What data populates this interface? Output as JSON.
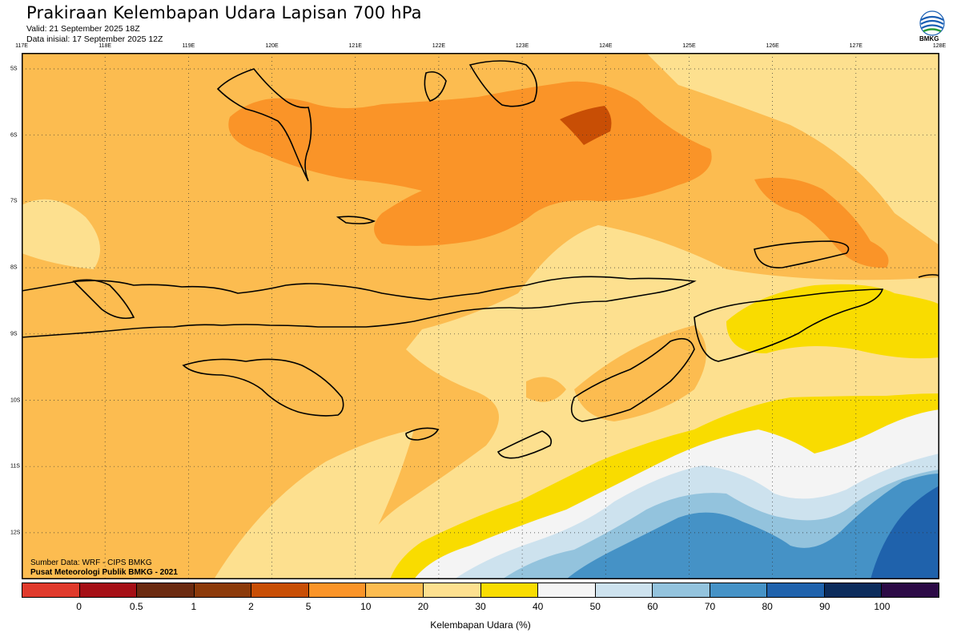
{
  "header": {
    "title": "Prakiraan Kelembapan Udara Lapisan 700 hPa",
    "valid": "Valid: 21 September 2025 18Z",
    "data_initial": "Data inisial: 17 September 2025 12Z",
    "logo_text": "BMKG"
  },
  "map": {
    "lon_labels": [
      "117E",
      "118E",
      "119E",
      "120E",
      "121E",
      "122E",
      "123E",
      "124E",
      "125E",
      "126E",
      "127E",
      "128E"
    ],
    "lat_labels": [
      "5S",
      "6S",
      "7S",
      "8S",
      "9S",
      "10S",
      "11S",
      "12S"
    ],
    "credit_source": "Sumber Data: WRF - CIPS BMKG",
    "credit_org": "Pusat Meteorologi Publik BMKG - 2021",
    "colors": {
      "c10_20": "#fcbc50",
      "c5_10": "#fa9428",
      "c2_5": "#c84e05",
      "c20_30": "#fde08f",
      "c30_40": "#f9dc00",
      "c40_50": "#f4f4f4",
      "c50_60": "#cde2ee",
      "c60_70": "#93c3dd",
      "c70_80": "#4592c6",
      "c80_90": "#1f62ac"
    }
  },
  "legend": {
    "title": "Kelembapan Udara (%)",
    "ticks": [
      "0",
      "0.5",
      "1",
      "2",
      "5",
      "10",
      "20",
      "30",
      "40",
      "50",
      "60",
      "70",
      "80",
      "90",
      "100"
    ],
    "colors": [
      "#e03a2c",
      "#a50f15",
      "#6b2a10",
      "#8c3a0a",
      "#c84e05",
      "#fa9428",
      "#fcbc50",
      "#fde08f",
      "#f9dc00",
      "#f4f4f4",
      "#cde2ee",
      "#93c3dd",
      "#4592c6",
      "#1f62ac",
      "#0c2c5c",
      "#2c0a46"
    ]
  }
}
